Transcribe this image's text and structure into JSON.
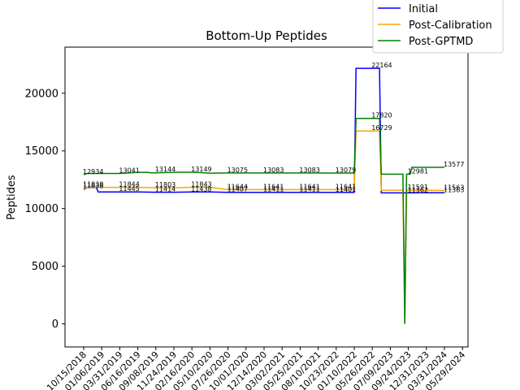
{
  "chart_data": {
    "type": "line",
    "title": "Bottom-Up Peptides",
    "xlabel": "",
    "ylabel": "Peptides",
    "ylim": [
      -2000,
      24000
    ],
    "yticks": [
      0,
      5000,
      10000,
      15000,
      20000
    ],
    "grid": false,
    "legend_position": "upper-right",
    "x_tick_labels": [
      "10/15/2018",
      "01/06/2019",
      "03/31/2019",
      "06/16/2019",
      "09/08/2019",
      "11/24/2019",
      "02/16/2020",
      "05/10/2020",
      "07/26/2020",
      "10/01/2020",
      "12/14/2020",
      "03/02/2021",
      "05/25/2021",
      "08/10/2021",
      "10/23/2022",
      "01/10/2022",
      "05/26/2022",
      "07/09/2023",
      "09/24/2023",
      "12/31/2023",
      "03/31/2024",
      "05/29/2024"
    ],
    "series": [
      {
        "name": "Initial",
        "color": "#0000ff",
        "points": [
          [
            0,
            11650
          ],
          [
            0.2,
            11838
          ],
          [
            0.7,
            11838
          ],
          [
            0.8,
            11445
          ],
          [
            2.0,
            11445
          ],
          [
            3.0,
            11445
          ],
          [
            4.0,
            11414
          ],
          [
            5.0,
            11414
          ],
          [
            6.0,
            11438
          ],
          [
            7.0,
            11438
          ],
          [
            8.0,
            11407
          ],
          [
            9.0,
            11407
          ],
          [
            10.0,
            11411
          ],
          [
            11.0,
            11411
          ],
          [
            12.0,
            11411
          ],
          [
            13.0,
            11411
          ],
          [
            14.0,
            11401
          ],
          [
            15.0,
            11401
          ],
          [
            15.1,
            22164
          ],
          [
            16.4,
            22164
          ],
          [
            16.5,
            11362
          ],
          [
            18.0,
            11362
          ],
          [
            18.3,
            11362
          ],
          [
            18.5,
            11363
          ],
          [
            20.0,
            11363
          ]
        ]
      },
      {
        "name": "Post-Calibration",
        "color": "#ffa500",
        "points": [
          [
            0,
            11700
          ],
          [
            0.2,
            11838
          ],
          [
            2.0,
            11838
          ],
          [
            3.0,
            11844
          ],
          [
            4.0,
            11803
          ],
          [
            5.0,
            11803
          ],
          [
            6.0,
            11843
          ],
          [
            7.0,
            11843
          ],
          [
            8.0,
            11644
          ],
          [
            9.0,
            11644
          ],
          [
            10.0,
            11641
          ],
          [
            11.0,
            11641
          ],
          [
            12.0,
            11641
          ],
          [
            13.0,
            11641
          ],
          [
            14.0,
            11641
          ],
          [
            15.0,
            11641
          ],
          [
            15.1,
            16729
          ],
          [
            16.4,
            16729
          ],
          [
            16.5,
            11591
          ],
          [
            17.7,
            11591
          ],
          [
            17.8,
            0
          ],
          [
            17.9,
            11591
          ],
          [
            18.0,
            11591
          ],
          [
            20.0,
            11563
          ]
        ]
      },
      {
        "name": "Post-GPTMD",
        "color": "#008000",
        "points": [
          [
            0,
            12934
          ],
          [
            0.2,
            13041
          ],
          [
            2.0,
            13041
          ],
          [
            3.0,
            13144
          ],
          [
            3.6,
            13144
          ],
          [
            3.7,
            13100
          ],
          [
            4.0,
            13100
          ],
          [
            5.0,
            13149
          ],
          [
            6.0,
            13149
          ],
          [
            7.0,
            13075
          ],
          [
            8.0,
            13083
          ],
          [
            10.0,
            13083
          ],
          [
            12.0,
            13083
          ],
          [
            13.0,
            13083
          ],
          [
            14.0,
            13079
          ],
          [
            15.0,
            13079
          ],
          [
            15.1,
            17820
          ],
          [
            16.4,
            17820
          ],
          [
            16.5,
            12981
          ],
          [
            17.7,
            12981
          ],
          [
            17.8,
            0
          ],
          [
            17.9,
            12981
          ],
          [
            18.1,
            12981
          ],
          [
            18.2,
            13577
          ],
          [
            20.0,
            13577
          ]
        ]
      }
    ],
    "data_labels": [
      {
        "text": "12934",
        "series": 2,
        "x": 0,
        "y": 12934
      },
      {
        "text": "11838",
        "series": 0,
        "x": 0,
        "y": 11838
      },
      {
        "text": "11838",
        "series": 1,
        "x": 0,
        "y": 11700
      },
      {
        "text": "13041",
        "series": 2,
        "x": 2.0,
        "y": 13041
      },
      {
        "text": "11844",
        "series": 1,
        "x": 2.0,
        "y": 11844
      },
      {
        "text": "11445",
        "series": 0,
        "x": 2.0,
        "y": 11445
      },
      {
        "text": "13144",
        "series": 2,
        "x": 4.0,
        "y": 13144
      },
      {
        "text": "11803",
        "series": 1,
        "x": 4.0,
        "y": 11803
      },
      {
        "text": "11414",
        "series": 0,
        "x": 4.0,
        "y": 11414
      },
      {
        "text": "13149",
        "series": 2,
        "x": 6.0,
        "y": 13149
      },
      {
        "text": "11843",
        "series": 1,
        "x": 6.0,
        "y": 11843
      },
      {
        "text": "11438",
        "series": 0,
        "x": 6.0,
        "y": 11438
      },
      {
        "text": "13075",
        "series": 2,
        "x": 8.0,
        "y": 13075
      },
      {
        "text": "11644",
        "series": 1,
        "x": 8.0,
        "y": 11644
      },
      {
        "text": "11407",
        "series": 0,
        "x": 8.0,
        "y": 11407
      },
      {
        "text": "13083",
        "series": 2,
        "x": 10.0,
        "y": 13083
      },
      {
        "text": "11641",
        "series": 1,
        "x": 10.0,
        "y": 11641
      },
      {
        "text": "11411",
        "series": 0,
        "x": 10.0,
        "y": 11411
      },
      {
        "text": "13083",
        "series": 2,
        "x": 12.0,
        "y": 13083
      },
      {
        "text": "11641",
        "series": 1,
        "x": 12.0,
        "y": 11641
      },
      {
        "text": "11411",
        "series": 0,
        "x": 12.0,
        "y": 11411
      },
      {
        "text": "13079",
        "series": 2,
        "x": 14.0,
        "y": 13079
      },
      {
        "text": "11641",
        "series": 1,
        "x": 14.0,
        "y": 11641
      },
      {
        "text": "11401",
        "series": 0,
        "x": 14.0,
        "y": 11401
      },
      {
        "text": "22164",
        "series": 0,
        "x": 16.0,
        "y": 22164
      },
      {
        "text": "17820",
        "series": 2,
        "x": 16.0,
        "y": 17820
      },
      {
        "text": "16729",
        "series": 1,
        "x": 16.0,
        "y": 16729
      },
      {
        "text": "12981",
        "series": 2,
        "x": 18.0,
        "y": 12981
      },
      {
        "text": "11591",
        "series": 1,
        "x": 18.0,
        "y": 11591
      },
      {
        "text": "11362",
        "series": 0,
        "x": 18.0,
        "y": 11362
      },
      {
        "text": "13577",
        "series": 2,
        "x": 20.0,
        "y": 13577
      },
      {
        "text": "11563",
        "series": 1,
        "x": 20.0,
        "y": 11563
      },
      {
        "text": "11363",
        "series": 0,
        "x": 20.0,
        "y": 11363
      }
    ]
  }
}
